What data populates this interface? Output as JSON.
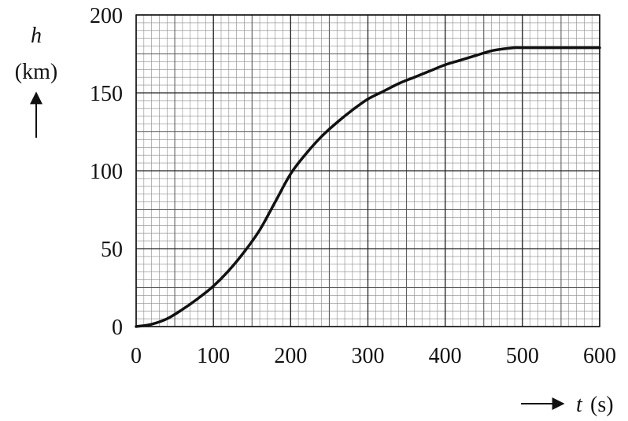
{
  "chart_data": {
    "type": "line",
    "xlabel": {
      "symbol": "t",
      "unit": "(s)"
    },
    "ylabel": {
      "symbol": "h",
      "unit": "(km)"
    },
    "xlim": [
      0,
      600
    ],
    "ylim": [
      0,
      200
    ],
    "x_ticks": [
      0,
      100,
      200,
      300,
      400,
      500,
      600
    ],
    "y_ticks": [
      0,
      50,
      100,
      150,
      200
    ],
    "x_tick_labels": [
      "0",
      "100",
      "200",
      "300",
      "400",
      "500",
      "600"
    ],
    "y_tick_labels": [
      "0",
      "50",
      "100",
      "150",
      "200"
    ],
    "grid": {
      "major_step_x": 100,
      "major_step_y": 50,
      "mid_step_x": 50,
      "mid_step_y": 25,
      "minor_step_x": 10,
      "minor_step_y": 5
    },
    "series": [
      {
        "x": [
          0,
          20,
          40,
          60,
          80,
          100,
          120,
          140,
          160,
          180,
          200,
          220,
          240,
          260,
          280,
          300,
          320,
          340,
          360,
          380,
          400,
          420,
          440,
          460,
          480,
          490,
          500,
          550,
          600
        ],
        "y": [
          0,
          1.5,
          5,
          11,
          18,
          26,
          36,
          48,
          62,
          80,
          98,
          111,
          122,
          131,
          139,
          146,
          151,
          156,
          160,
          164,
          168,
          171,
          174,
          177,
          178.5,
          179,
          179,
          179,
          179
        ]
      }
    ]
  }
}
